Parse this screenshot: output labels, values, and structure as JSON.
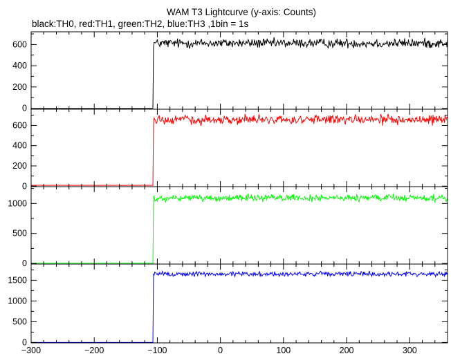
{
  "title": "WAM T3 Lightcurve (y-axis: Counts)",
  "subtitle": "black:TH0, red:TH1, green:TH2, blue:TH3 ,1bin = 1s",
  "chart_data": [
    {
      "type": "line",
      "series": [
        {
          "name": "TH0",
          "color": "#000000",
          "pre_level": 0,
          "post_level": 612,
          "noise": 22
        }
      ],
      "x": {
        "start": -300,
        "end": 360,
        "step": 1,
        "onset": -106
      },
      "xlim": [
        -300,
        360
      ],
      "ylim": [
        -10,
        720
      ],
      "yticks": [
        0,
        200,
        400,
        600
      ],
      "ytick_labels": [
        "0",
        "200",
        "400",
        "600"
      ],
      "grid": false
    },
    {
      "type": "line",
      "series": [
        {
          "name": "TH1",
          "color": "#ff0000",
          "pre_level": 8,
          "post_level": 655,
          "noise": 22
        }
      ],
      "x": {
        "start": -300,
        "end": 360,
        "step": 1,
        "onset": -106
      },
      "xlim": [
        -300,
        360
      ],
      "ylim": [
        -5,
        760
      ],
      "yticks": [
        0,
        200,
        400,
        600
      ],
      "ytick_labels": [
        "0",
        "200",
        "400",
        "600"
      ],
      "grid": false
    },
    {
      "type": "line",
      "series": [
        {
          "name": "TH2",
          "color": "#00ff00",
          "pre_level": 5,
          "post_level": 1090,
          "noise": 28
        }
      ],
      "x": {
        "start": -300,
        "end": 360,
        "step": 1,
        "onset": -106
      },
      "xlim": [
        -300,
        360
      ],
      "ylim": [
        -10,
        1280
      ],
      "yticks": [
        0,
        500,
        1000
      ],
      "ytick_labels": [
        "0",
        "500",
        "1000"
      ],
      "grid": false
    },
    {
      "type": "line",
      "series": [
        {
          "name": "TH3",
          "color": "#0000ff",
          "pre_level": 0,
          "post_level": 1650,
          "noise": 30
        }
      ],
      "x": {
        "start": -300,
        "end": 360,
        "step": 1,
        "onset": -106
      },
      "xlim": [
        -300,
        360
      ],
      "ylim": [
        -10,
        1890
      ],
      "yticks": [
        0,
        500,
        1000,
        1500
      ],
      "ytick_labels": [
        "0",
        "500",
        "1000",
        "1500"
      ],
      "xticks": [
        -300,
        -200,
        -100,
        0,
        100,
        200,
        300
      ],
      "xtick_labels": [
        "−300",
        "−200",
        "−100",
        "0",
        "100",
        "200",
        "300"
      ],
      "grid": false
    }
  ]
}
